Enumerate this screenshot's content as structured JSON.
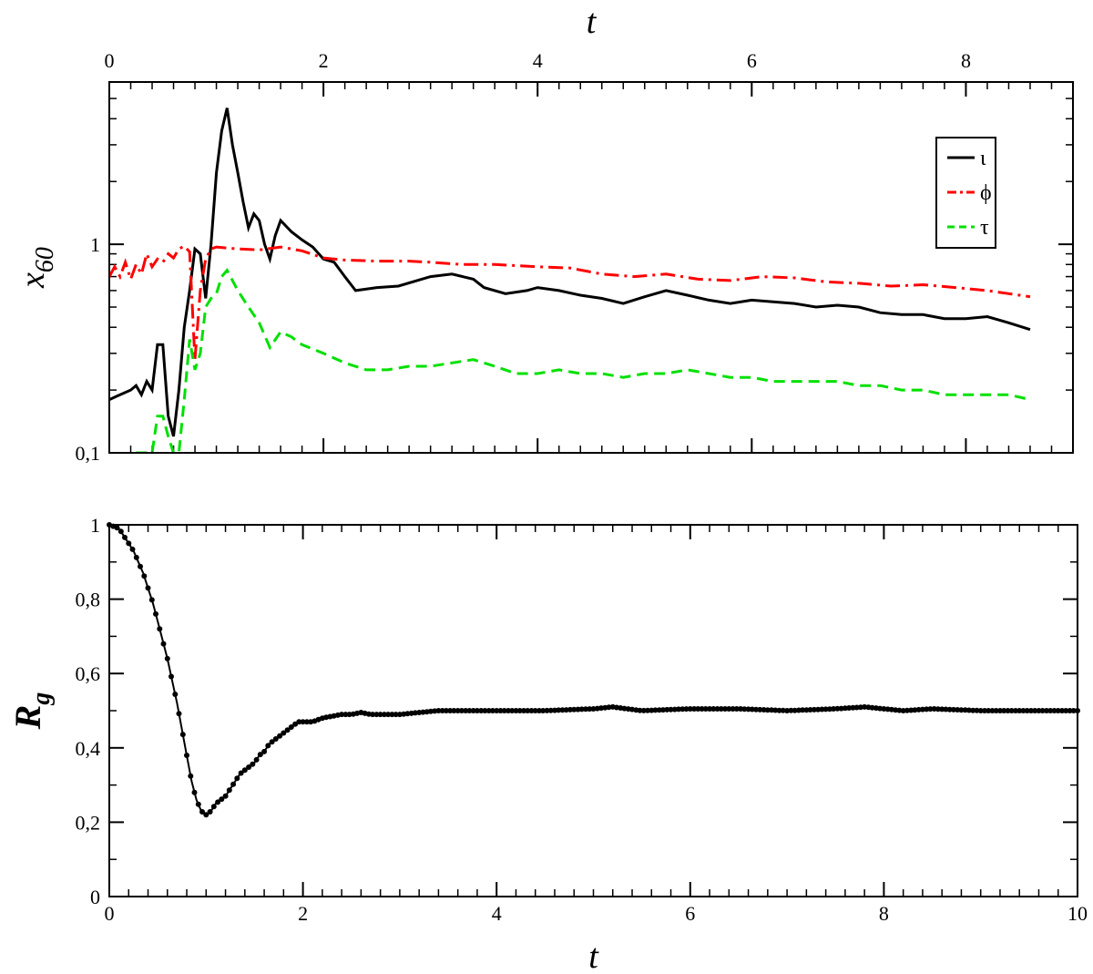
{
  "colors": {
    "series_iota": "#000000",
    "series_phi": "#ff0000",
    "series_tau": "#00e000",
    "rg_line": "#000000",
    "background": "#ffffff"
  },
  "chart_data": [
    {
      "id": "top",
      "type": "line",
      "xlabel": "t",
      "ylabel_main": "x",
      "ylabel_sub": "60",
      "xlim": [
        0,
        9.0
      ],
      "ylim": [
        0.1,
        6.0
      ],
      "yscale": "log",
      "xtick_values": [
        0,
        2,
        4,
        6,
        8
      ],
      "xtick_labels": [
        "0",
        "2",
        "4",
        "6",
        "8"
      ],
      "ytick_values": [
        0.1,
        1
      ],
      "ytick_labels": [
        "0,1",
        "1"
      ],
      "legend_position": "top-right",
      "grid": false,
      "series": [
        {
          "name": "ι",
          "style": "solid",
          "color": "#000000",
          "x": [
            0,
            0.1,
            0.2,
            0.25,
            0.3,
            0.35,
            0.4,
            0.45,
            0.5,
            0.55,
            0.6,
            0.65,
            0.7,
            0.75,
            0.8,
            0.85,
            0.9,
            0.95,
            1.0,
            1.05,
            1.1,
            1.15,
            1.2,
            1.25,
            1.3,
            1.35,
            1.4,
            1.45,
            1.5,
            1.55,
            1.6,
            1.7,
            1.8,
            1.9,
            2.0,
            2.1,
            2.2,
            2.3,
            2.5,
            2.7,
            3.0,
            3.2,
            3.4,
            3.5,
            3.7,
            3.9,
            4.0,
            4.2,
            4.4,
            4.6,
            4.8,
            5.0,
            5.2,
            5.4,
            5.6,
            5.8,
            6.0,
            6.2,
            6.4,
            6.6,
            6.8,
            7.0,
            7.2,
            7.4,
            7.6,
            7.8,
            8.0,
            8.2,
            8.4,
            8.6
          ],
          "y": [
            0.18,
            0.19,
            0.2,
            0.21,
            0.19,
            0.22,
            0.2,
            0.33,
            0.33,
            0.15,
            0.12,
            0.2,
            0.4,
            0.6,
            0.95,
            0.9,
            0.55,
            1.0,
            2.2,
            3.5,
            4.5,
            3.0,
            2.2,
            1.6,
            1.2,
            1.4,
            1.3,
            1.0,
            0.85,
            1.1,
            1.3,
            1.15,
            1.05,
            0.97,
            0.85,
            0.82,
            0.7,
            0.6,
            0.62,
            0.63,
            0.7,
            0.72,
            0.68,
            0.62,
            0.58,
            0.6,
            0.62,
            0.6,
            0.57,
            0.55,
            0.52,
            0.56,
            0.6,
            0.57,
            0.54,
            0.52,
            0.54,
            0.53,
            0.52,
            0.5,
            0.51,
            0.5,
            0.47,
            0.46,
            0.46,
            0.44,
            0.44,
            0.45,
            0.42,
            0.39
          ]
        },
        {
          "name": "ϕ",
          "style": "dashdot",
          "color": "#ff0000",
          "x": [
            0,
            0.05,
            0.1,
            0.15,
            0.2,
            0.25,
            0.3,
            0.35,
            0.4,
            0.45,
            0.5,
            0.55,
            0.6,
            0.65,
            0.7,
            0.75,
            0.8,
            0.85,
            0.9,
            0.95,
            1.0,
            1.1,
            1.2,
            1.4,
            1.6,
            1.8,
            2.0,
            2.2,
            2.5,
            2.8,
            3.0,
            3.3,
            3.6,
            4.0,
            4.3,
            4.6,
            4.9,
            5.2,
            5.5,
            5.8,
            6.1,
            6.4,
            6.7,
            7.0,
            7.3,
            7.6,
            7.9,
            8.2,
            8.4,
            8.6
          ],
          "y": [
            0.7,
            0.78,
            0.7,
            0.82,
            0.68,
            0.8,
            0.72,
            0.9,
            0.78,
            0.85,
            0.82,
            0.9,
            0.86,
            0.95,
            0.98,
            0.92,
            0.28,
            0.6,
            0.85,
            0.95,
            0.97,
            0.96,
            0.95,
            0.94,
            0.97,
            0.93,
            0.86,
            0.84,
            0.83,
            0.83,
            0.82,
            0.8,
            0.8,
            0.78,
            0.77,
            0.72,
            0.7,
            0.72,
            0.68,
            0.67,
            0.7,
            0.69,
            0.66,
            0.65,
            0.63,
            0.64,
            0.62,
            0.6,
            0.58,
            0.56
          ]
        },
        {
          "name": "τ",
          "style": "dashed",
          "color": "#00e000",
          "x": [
            0.25,
            0.35,
            0.4,
            0.45,
            0.5,
            0.55,
            0.6,
            0.65,
            0.7,
            0.75,
            0.8,
            0.85,
            0.9,
            0.95,
            1.0,
            1.05,
            1.1,
            1.2,
            1.3,
            1.4,
            1.5,
            1.6,
            1.7,
            1.8,
            2.0,
            2.2,
            2.4,
            2.6,
            2.8,
            3.0,
            3.2,
            3.4,
            3.6,
            3.8,
            4.0,
            4.2,
            4.4,
            4.6,
            4.8,
            5.0,
            5.2,
            5.4,
            5.6,
            5.8,
            6.0,
            6.2,
            6.4,
            6.6,
            6.8,
            7.0,
            7.2,
            7.4,
            7.6,
            7.8,
            8.0,
            8.2,
            8.4,
            8.6
          ],
          "y": [
            0.1,
            0.1,
            0.1,
            0.15,
            0.15,
            0.12,
            0.1,
            0.1,
            0.18,
            0.35,
            0.25,
            0.3,
            0.5,
            0.55,
            0.58,
            0.7,
            0.75,
            0.6,
            0.5,
            0.42,
            0.32,
            0.38,
            0.36,
            0.33,
            0.3,
            0.27,
            0.25,
            0.25,
            0.26,
            0.26,
            0.27,
            0.28,
            0.26,
            0.24,
            0.24,
            0.25,
            0.24,
            0.24,
            0.23,
            0.24,
            0.24,
            0.25,
            0.24,
            0.23,
            0.23,
            0.22,
            0.22,
            0.22,
            0.22,
            0.21,
            0.21,
            0.2,
            0.2,
            0.19,
            0.19,
            0.19,
            0.19,
            0.18
          ]
        }
      ]
    },
    {
      "id": "bottom",
      "type": "line",
      "markers": true,
      "xlabel": "t",
      "ylabel_main": "R",
      "ylabel_sub": "g",
      "xlim": [
        0,
        10
      ],
      "ylim": [
        0,
        1
      ],
      "xtick_values": [
        0,
        2,
        4,
        6,
        8,
        10
      ],
      "xtick_labels": [
        "0",
        "2",
        "4",
        "6",
        "8",
        "10"
      ],
      "ytick_values": [
        0,
        0.2,
        0.4,
        0.6,
        0.8,
        1
      ],
      "ytick_labels": [
        "0",
        "0,2",
        "0,4",
        "0,6",
        "0,8",
        "1"
      ],
      "grid": false,
      "series": [
        {
          "color": "#000000",
          "x": [
            0,
            0.05,
            0.1,
            0.15,
            0.2,
            0.25,
            0.3,
            0.35,
            0.4,
            0.45,
            0.5,
            0.55,
            0.6,
            0.65,
            0.7,
            0.75,
            0.8,
            0.85,
            0.9,
            0.95,
            1.0,
            1.05,
            1.1,
            1.15,
            1.2,
            1.25,
            1.3,
            1.35,
            1.4,
            1.45,
            1.5,
            1.55,
            1.6,
            1.65,
            1.7,
            1.75,
            1.8,
            1.85,
            1.9,
            1.95,
            2.0,
            2.1,
            2.2,
            2.3,
            2.4,
            2.5,
            2.6,
            2.7,
            2.8,
            3.0,
            3.2,
            3.4,
            3.6,
            3.8,
            4.0,
            4.5,
            5.0,
            5.2,
            5.5,
            6.0,
            6.5,
            7.0,
            7.5,
            7.8,
            8.0,
            8.2,
            8.5,
            9.0,
            9.5,
            10.0
          ],
          "y": [
            1.0,
            0.995,
            0.99,
            0.97,
            0.95,
            0.93,
            0.9,
            0.87,
            0.83,
            0.79,
            0.74,
            0.69,
            0.64,
            0.58,
            0.52,
            0.45,
            0.38,
            0.31,
            0.26,
            0.23,
            0.22,
            0.23,
            0.25,
            0.26,
            0.27,
            0.29,
            0.31,
            0.33,
            0.34,
            0.35,
            0.36,
            0.38,
            0.39,
            0.41,
            0.42,
            0.43,
            0.44,
            0.45,
            0.46,
            0.47,
            0.47,
            0.47,
            0.48,
            0.485,
            0.49,
            0.49,
            0.495,
            0.49,
            0.49,
            0.49,
            0.495,
            0.5,
            0.5,
            0.5,
            0.5,
            0.5,
            0.505,
            0.51,
            0.5,
            0.505,
            0.505,
            0.5,
            0.505,
            0.51,
            0.505,
            0.5,
            0.505,
            0.5,
            0.5,
            0.5
          ]
        }
      ]
    }
  ]
}
